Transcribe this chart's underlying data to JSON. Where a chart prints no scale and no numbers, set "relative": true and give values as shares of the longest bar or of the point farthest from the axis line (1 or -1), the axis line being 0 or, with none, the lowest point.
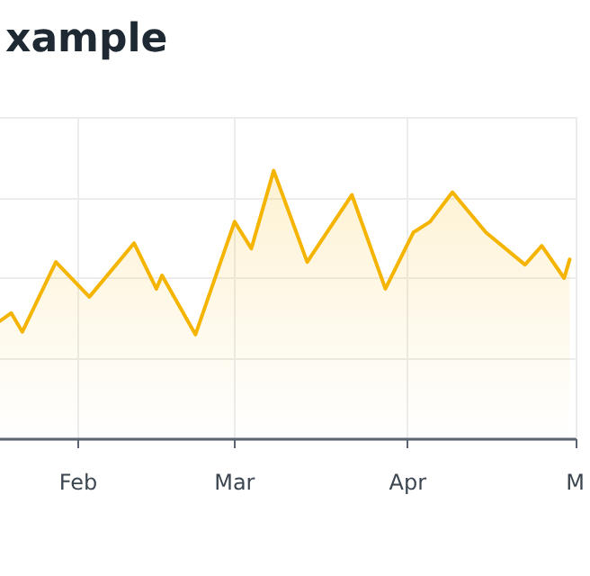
{
  "chart_data": {
    "type": "area",
    "title": "xample",
    "relative": true,
    "grid": true,
    "marker": "none",
    "line_style": "solid",
    "xlim": [
      "--01-18",
      "--05-01"
    ],
    "xticks": [
      {
        "value": "--02-01",
        "label": "Feb"
      },
      {
        "value": "--03-01",
        "label": "Mar"
      },
      {
        "value": "--04-01",
        "label": "Apr"
      },
      {
        "value": "--05-01",
        "label": "M"
      }
    ],
    "x": [
      "--01-18",
      "--01-20",
      "--01-22",
      "--01-28",
      "--02-03",
      "--02-11",
      "--02-15",
      "--02-16",
      "--02-22",
      "--03-01",
      "--03-04",
      "--03-08",
      "--03-14",
      "--03-22",
      "--03-28",
      "--04-02",
      "--04-05",
      "--04-09",
      "--04-15",
      "--04-22",
      "--04-25",
      "--04-29",
      "--04-30"
    ],
    "series": [
      {
        "color": "#f4b400",
        "values": [
          0.44,
          0.47,
          0.4,
          0.66,
          0.53,
          0.73,
          0.56,
          0.61,
          0.39,
          0.81,
          0.71,
          1,
          0.66,
          0.91,
          0.56,
          0.77,
          0.81,
          0.92,
          0.77,
          0.65,
          0.72,
          0.6,
          0.67
        ]
      }
    ]
  }
}
